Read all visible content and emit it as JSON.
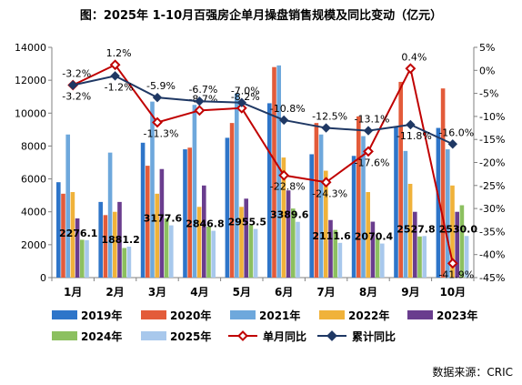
{
  "title": "图：2025年 1-10月百强房企单月操盘销售规模及同比变动（亿元）",
  "source": "数据来源：CRIC",
  "chart_data": {
    "type": "bar",
    "categories": [
      "1月",
      "2月",
      "3月",
      "4月",
      "5月",
      "6月",
      "7月",
      "8月",
      "9月",
      "10月"
    ],
    "series": [
      {
        "name": "2019年",
        "color": "#2e75c9",
        "values": [
          5800,
          4600,
          8200,
          7800,
          8500,
          10600,
          7500,
          7400,
          9200,
          9100
        ]
      },
      {
        "name": "2020年",
        "color": "#e35b3a",
        "values": [
          5100,
          3800,
          6800,
          7900,
          9400,
          12800,
          9400,
          9800,
          11900,
          11500
        ]
      },
      {
        "name": "2021年",
        "color": "#6ea8dc",
        "values": [
          8700,
          7600,
          10700,
          10500,
          11200,
          12900,
          8700,
          8600,
          7700,
          7800
        ]
      },
      {
        "name": "2022年",
        "color": "#f0b23a",
        "values": [
          5200,
          4000,
          5100,
          4300,
          4300,
          7300,
          6500,
          5200,
          5700,
          5600
        ]
      },
      {
        "name": "2023年",
        "color": "#6a3d8e",
        "values": [
          3600,
          4600,
          6600,
          5600,
          4800,
          5300,
          3500,
          3400,
          4000,
          4000
        ]
      },
      {
        "name": "2024年",
        "color": "#8cc060",
        "values": [
          2300,
          1800,
          3600,
          3100,
          3200,
          4200,
          2900,
          2400,
          2500,
          4400
        ]
      },
      {
        "name": "2025年",
        "color": "#a8c8ec",
        "values": [
          2276.1,
          1881.2,
          3177.6,
          2846.8,
          2955.5,
          3389.6,
          2111.6,
          2070.4,
          2527.8,
          2530.0
        ]
      }
    ],
    "data_labels": [
      "2276.1",
      "1881.2",
      "3177.6",
      "2846.8",
      "2955.5",
      "3389.6",
      "2111.6",
      "2070.4",
      "2527.8",
      "2530.0"
    ],
    "lines": [
      {
        "name": "单月同比",
        "color": "#c00000",
        "marker": "diamond",
        "values": [
          -3.2,
          1.2,
          -11.3,
          -8.7,
          -8.2,
          -22.8,
          -24.3,
          -17.6,
          0.4,
          -41.9
        ],
        "labels": [
          "-3.2%",
          "1.2%",
          "-11.3%",
          "-8.7%",
          "-8.2%",
          "-22.8%",
          "-24.3%",
          "-17.6%",
          "0.4%",
          "-41.9%"
        ]
      },
      {
        "name": "累计同比",
        "color": "#1f3864",
        "marker": "diamond",
        "values": [
          -3.2,
          -1.2,
          -5.9,
          -6.7,
          -7.0,
          -10.8,
          -12.5,
          -13.1,
          -11.8,
          -16.0
        ],
        "labels": [
          "-3.2%",
          "-1.2%",
          "-5.9%",
          "-6.7%",
          "-7.0%",
          "-10.8%",
          "-12.5%",
          "-13.1%",
          "-11.8%",
          "-16.0%"
        ]
      }
    ],
    "left_axis": {
      "min": 0,
      "max": 14000,
      "step": 2000,
      "ticks": [
        "0",
        "2000",
        "4000",
        "6000",
        "8000",
        "10000",
        "12000",
        "14000"
      ]
    },
    "right_axis": {
      "min": -45,
      "max": 5,
      "step": 5,
      "ticks": [
        "5%",
        "0%",
        "-5%",
        "-10%",
        "-15%",
        "-20%",
        "-25%",
        "-30%",
        "-35%",
        "-40%",
        "-45%"
      ]
    },
    "grid": false,
    "legend_position": "bottom"
  }
}
